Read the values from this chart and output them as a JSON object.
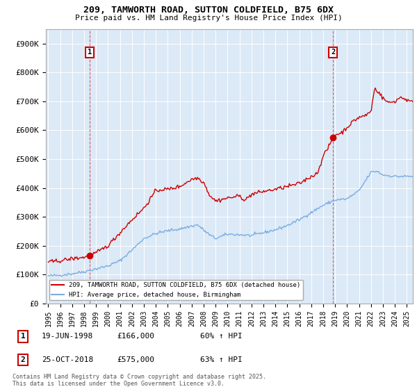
{
  "title": "209, TAMWORTH ROAD, SUTTON COLDFIELD, B75 6DX",
  "subtitle": "Price paid vs. HM Land Registry's House Price Index (HPI)",
  "ylabel_ticks": [
    "£0",
    "£100K",
    "£200K",
    "£300K",
    "£400K",
    "£500K",
    "£600K",
    "£700K",
    "£800K",
    "£900K"
  ],
  "ytick_values": [
    0,
    100000,
    200000,
    300000,
    400000,
    500000,
    600000,
    700000,
    800000,
    900000
  ],
  "xlim": [
    1994.8,
    2025.5
  ],
  "ylim": [
    0,
    950000
  ],
  "sale1_date": 1998.46,
  "sale1_price": 166000,
  "sale1_label": "1",
  "sale1_info": "19-JUN-1998",
  "sale1_price_str": "£166,000",
  "sale1_hpi_str": "60% ↑ HPI",
  "sale2_date": 2018.82,
  "sale2_price": 575000,
  "sale2_label": "2",
  "sale2_info": "25-OCT-2018",
  "sale2_price_str": "£575,000",
  "sale2_hpi_str": "63% ↑ HPI",
  "red_line_color": "#cc0000",
  "blue_line_color": "#7aade0",
  "plot_bg_color": "#dce9f7",
  "background_color": "#ffffff",
  "grid_color": "#ffffff",
  "legend_label_red": "209, TAMWORTH ROAD, SUTTON COLDFIELD, B75 6DX (detached house)",
  "legend_label_blue": "HPI: Average price, detached house, Birmingham",
  "footer": "Contains HM Land Registry data © Crown copyright and database right 2025.\nThis data is licensed under the Open Government Licence v3.0."
}
